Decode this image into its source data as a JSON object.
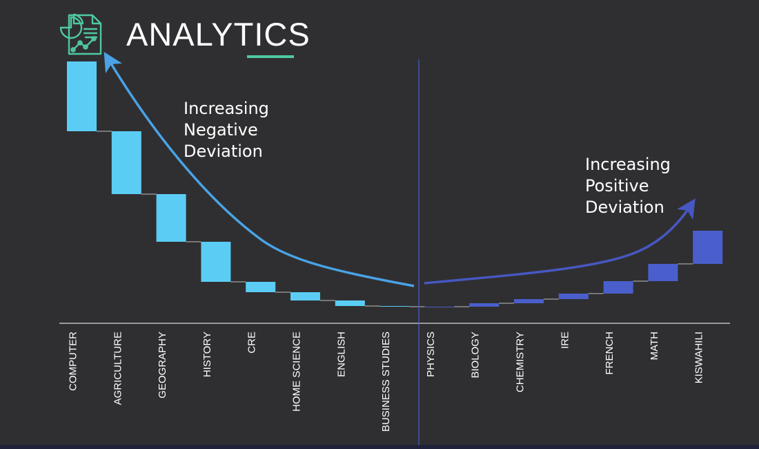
{
  "header": {
    "title": "ANALYTICS",
    "icon": "report-analytics-icon",
    "accent_color": "#4fc9a2"
  },
  "annotations": {
    "negative": "Increasing\nNegative\nDeviation",
    "positive": "Increasing\nPositive\nDeviation"
  },
  "colors": {
    "negative_bar": "#5bcdf5",
    "positive_bar": "#4a5fcc",
    "negative_arrow": "#4aa3e6",
    "positive_arrow": "#4757c2",
    "axis": "#d9d9d9",
    "connector": "#bfbfbf",
    "divider": "#4a5fcc"
  },
  "chart_data": {
    "type": "bar",
    "subtype": "waterfall",
    "categories": [
      "COMPUTER",
      "AGRICULTURE",
      "GEOGRAPHY",
      "HISTORY",
      "CRE",
      "HOME SCIENCE",
      "ENGLISH",
      "BUSINESS STUDIES",
      "PHYSICS",
      "BIOLOGY",
      "CHEMISTRY",
      "IRE",
      "FRENCH",
      "MATH",
      "KISWAHILI"
    ],
    "values": [
      -10.1,
      -9.1,
      -6.9,
      -5.8,
      -1.5,
      -1.2,
      -0.8,
      -0.1,
      0,
      0.5,
      0.6,
      0.8,
      1.8,
      2.5,
      4.8
    ],
    "grid": false,
    "legend": "none"
  }
}
